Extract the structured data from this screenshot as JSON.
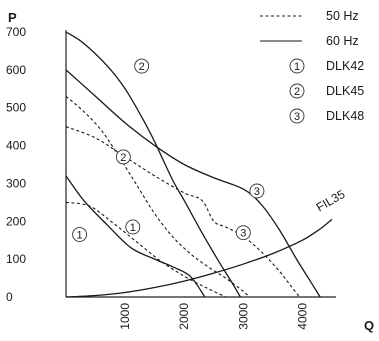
{
  "chart_data": {
    "type": "line",
    "title": "",
    "ylabel": "P",
    "xlabel": "Q",
    "xlim": [
      0,
      4500
    ],
    "ylim": [
      0,
      700
    ],
    "grid": false,
    "legend_position": "top-right",
    "xticks": [
      1000,
      2000,
      3000,
      4000
    ],
    "yticks": [
      0,
      100,
      200,
      300,
      400,
      500,
      600,
      700
    ],
    "legend": {
      "line_styles": [
        {
          "style": "dashed",
          "label": "50 Hz"
        },
        {
          "style": "solid",
          "label": "60 Hz"
        }
      ],
      "markers": [
        {
          "symbol": "1",
          "label": "DLK42"
        },
        {
          "symbol": "2",
          "label": "DLK45"
        },
        {
          "symbol": "3",
          "label": "DLK48"
        }
      ]
    },
    "series": [
      {
        "model": "1",
        "hz": "60 Hz",
        "style": "solid",
        "x": [
          0,
          300,
          700,
          1100,
          1500,
          1800,
          2100,
          2350
        ],
        "y": [
          320,
          255,
          190,
          130,
          100,
          80,
          55,
          0
        ]
      },
      {
        "model": "1",
        "hz": "50 Hz",
        "style": "dashed",
        "x": [
          0,
          400,
          800,
          1200,
          1600,
          2000,
          2300,
          2500,
          2700
        ],
        "y": [
          250,
          240,
          195,
          145,
          95,
          55,
          30,
          15,
          0
        ]
      },
      {
        "model": "2",
        "hz": "60 Hz",
        "style": "solid",
        "x": [
          0,
          300,
          700,
          1000,
          1300,
          1500,
          1800,
          2000,
          2300,
          2600,
          2800,
          2950
        ],
        "y": [
          700,
          670,
          610,
          550,
          470,
          410,
          310,
          255,
          170,
          90,
          40,
          0
        ]
      },
      {
        "model": "2",
        "hz": "50 Hz",
        "style": "dashed",
        "x": [
          0,
          300,
          600,
          900,
          1200,
          1500,
          1800,
          2100,
          2400,
          2700,
          3000,
          3100
        ],
        "y": [
          530,
          490,
          440,
          370,
          295,
          220,
          160,
          115,
          80,
          50,
          15,
          0
        ]
      },
      {
        "model": "3",
        "hz": "60 Hz",
        "style": "solid",
        "x": [
          0,
          500,
          1000,
          1500,
          2000,
          2500,
          3000,
          3300,
          3600,
          3900,
          4100,
          4300
        ],
        "y": [
          600,
          530,
          460,
          400,
          350,
          315,
          285,
          245,
          180,
          100,
          50,
          0
        ]
      },
      {
        "model": "3",
        "hz": "50 Hz",
        "style": "dashed",
        "x": [
          0,
          500,
          1000,
          1500,
          2000,
          2300,
          2500,
          2700,
          3000,
          3300,
          3600,
          3800,
          3950
        ],
        "y": [
          450,
          420,
          370,
          320,
          275,
          255,
          200,
          185,
          160,
          120,
          70,
          30,
          0
        ]
      },
      {
        "name": "FIL35",
        "style": "solid",
        "x": [
          0,
          500,
          1000,
          1500,
          2000,
          2500,
          3000,
          3500,
          4000,
          4300,
          4500
        ],
        "y": [
          0,
          4,
          12,
          25,
          42,
          63,
          87,
          115,
          150,
          180,
          205
        ]
      }
    ],
    "annotations": [
      {
        "text": "FIL35",
        "x": 4420,
        "y": 225
      },
      {
        "text": "1",
        "x": 230,
        "y": 165,
        "circled": true
      },
      {
        "text": "1",
        "x": 1130,
        "y": 185,
        "circled": true
      },
      {
        "text": "2",
        "x": 1280,
        "y": 610,
        "circled": true
      },
      {
        "text": "2",
        "x": 970,
        "y": 370,
        "circled": true
      },
      {
        "text": "3",
        "x": 3230,
        "y": 280,
        "circled": true
      },
      {
        "text": "3",
        "x": 3000,
        "y": 170,
        "circled": true
      }
    ]
  }
}
